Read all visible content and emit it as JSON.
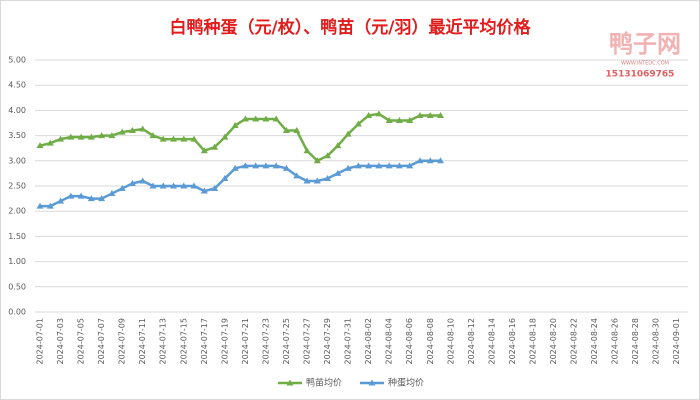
{
  "chart_data": {
    "type": "line",
    "title": "白鸭种蛋（元/枚）、鸭苗（元/羽）最近平均价格",
    "watermark": {
      "logo": "鸭子网",
      "url": "WWW.INTEDC.COM",
      "phone": "15131069765"
    },
    "categories": [
      "2024-07-01",
      null,
      "2024-07-03",
      null,
      "2024-07-05",
      null,
      "2024-07-07",
      null,
      "2024-07-09",
      null,
      "2024-07-11",
      null,
      "2024-07-13",
      null,
      "2024-07-15",
      null,
      "2024-07-17",
      null,
      "2024-07-19",
      null,
      "2024-07-21",
      null,
      "2024-07-23",
      null,
      "2024-07-25",
      null,
      "2024-07-27",
      null,
      "2024-07-29",
      null,
      "2024-07-31",
      null,
      "2024-08-02",
      null,
      "2024-08-04",
      null,
      "2024-08-06",
      null,
      "2024-08-08",
      null,
      "2024-08-10",
      null,
      "2024-08-12",
      null,
      "2024-08-14",
      null,
      "2024-08-16",
      null,
      "2024-08-18",
      null,
      "2024-08-20",
      null,
      "2024-08-22",
      null,
      "2024-08-24",
      null,
      "2024-08-26",
      null,
      "2024-08-28",
      null,
      "2024-08-30",
      null,
      "2024-09-01"
    ],
    "series": [
      {
        "name": "鸭苗均价",
        "color": "#70ad47",
        "values": [
          3.3,
          3.35,
          3.43,
          3.47,
          3.47,
          3.47,
          3.5,
          3.5,
          3.57,
          3.6,
          3.63,
          3.5,
          3.43,
          3.43,
          3.43,
          3.43,
          3.2,
          3.27,
          3.47,
          3.7,
          3.83,
          3.83,
          3.83,
          3.83,
          3.6,
          3.6,
          3.2,
          3.0,
          3.1,
          3.3,
          3.53,
          3.73,
          3.9,
          3.93,
          3.8,
          3.8,
          3.8,
          3.9,
          3.9,
          3.9,
          null,
          null,
          null,
          null,
          null,
          null,
          null,
          null,
          null,
          null,
          null,
          null,
          null,
          null,
          null,
          null,
          null,
          null,
          null,
          null,
          null,
          null,
          null
        ]
      },
      {
        "name": "种蛋均价",
        "color": "#5b9bd5",
        "values": [
          2.1,
          2.1,
          2.2,
          2.3,
          2.3,
          2.25,
          2.25,
          2.35,
          2.45,
          2.55,
          2.6,
          2.5,
          2.5,
          2.5,
          2.5,
          2.5,
          2.4,
          2.45,
          2.65,
          2.85,
          2.9,
          2.9,
          2.9,
          2.9,
          2.85,
          2.7,
          2.6,
          2.6,
          2.65,
          2.75,
          2.85,
          2.9,
          2.9,
          2.9,
          2.9,
          2.9,
          2.9,
          3.0,
          3.0,
          3.0,
          null,
          null,
          null,
          null,
          null,
          null,
          null,
          null,
          null,
          null,
          null,
          null,
          null,
          null,
          null,
          null,
          null,
          null,
          null,
          null,
          null,
          null,
          null
        ]
      }
    ],
    "ylim": [
      0,
      5
    ],
    "yticks": [
      {
        "value": 0,
        "label": "0.00"
      },
      {
        "value": 0.5,
        "label": "0.50"
      },
      {
        "value": 1,
        "label": "1.00"
      },
      {
        "value": 1.5,
        "label": "1.50"
      },
      {
        "value": 2,
        "label": "2.00"
      },
      {
        "value": 2.5,
        "label": "2.50"
      },
      {
        "value": 3,
        "label": "3.00"
      },
      {
        "value": 3.5,
        "label": "3.50"
      },
      {
        "value": 4,
        "label": "4.00"
      },
      {
        "value": 4.5,
        "label": "4.50"
      },
      {
        "value": 5,
        "label": "5.00"
      }
    ],
    "grid": true,
    "legend": "bottom"
  }
}
